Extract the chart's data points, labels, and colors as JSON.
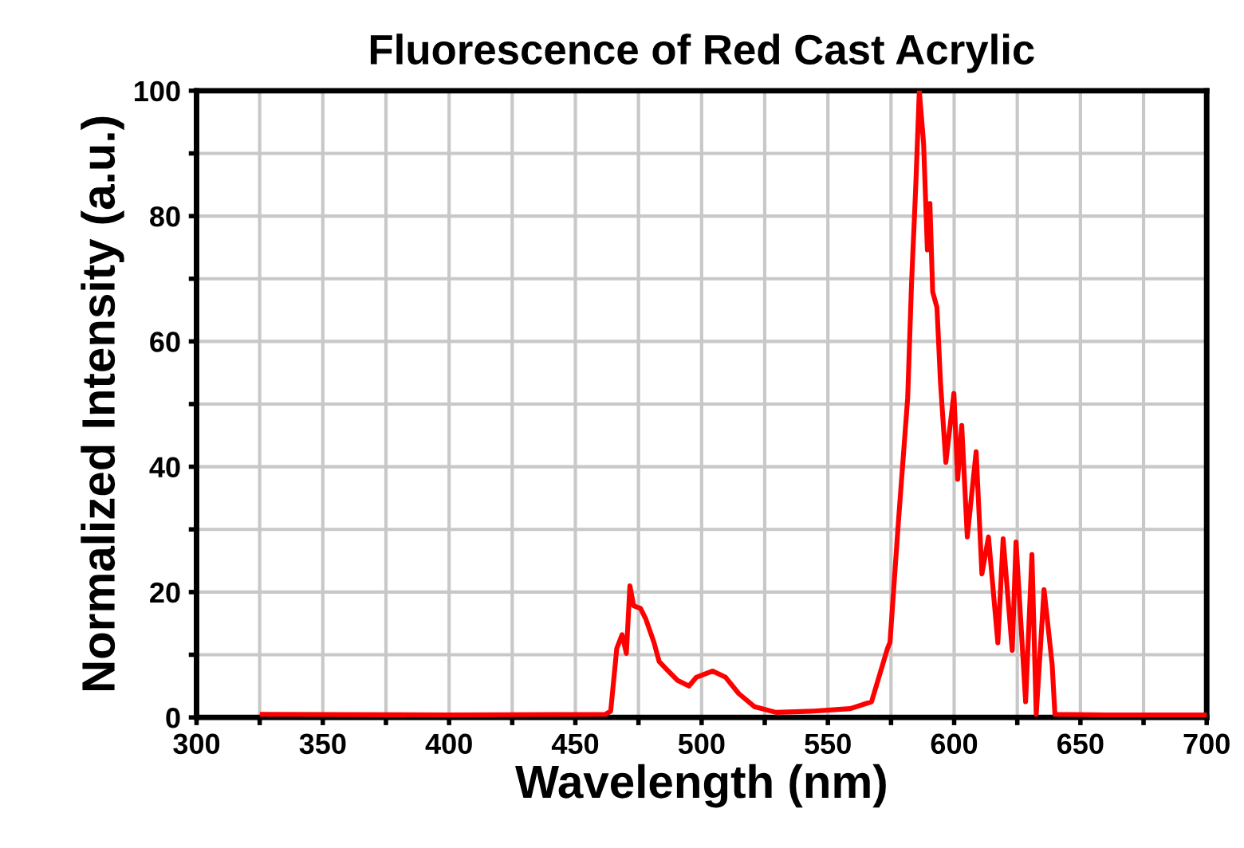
{
  "chart_data": {
    "type": "line",
    "title": "Fluorescence of Red Cast Acrylic",
    "xlabel": "Wavelength (nm)",
    "ylabel": "Normalized Intensity (a.u.)",
    "xlim": [
      300,
      700
    ],
    "ylim": [
      0,
      100
    ],
    "xticks": [
      300,
      {
        "value": 325,
        "label": null
      },
      350,
      {
        "value": 375,
        "label": null
      },
      400,
      {
        "value": 425,
        "label": null
      },
      450,
      {
        "value": 475,
        "label": null
      },
      500,
      {
        "value": 525,
        "label": null
      },
      550,
      {
        "value": 575,
        "label": null
      },
      600,
      {
        "value": 625,
        "label": null
      },
      650,
      {
        "value": 675,
        "label": null
      },
      700
    ],
    "yticks": [
      0,
      {
        "value": 10,
        "label": null
      },
      20,
      {
        "value": 30,
        "label": null
      },
      40,
      {
        "value": 50,
        "label": null
      },
      60,
      {
        "value": 70,
        "label": null
      },
      80,
      {
        "value": 90,
        "label": null
      },
      100
    ],
    "grid": true,
    "marker": "none",
    "line_style": "solid",
    "series": [
      {
        "color": "#ff0000",
        "x": [
          326,
          400,
          462,
          464,
          466.4,
          468.5,
          470.2,
          471.6,
          473.1,
          475.8,
          477.9,
          481.1,
          483.2,
          486.3,
          490.5,
          495,
          497.9,
          504.4,
          509.5,
          514.7,
          521,
          529.5,
          544.2,
          558.9,
          567.3,
          573.6,
          574.6,
          577.8,
          581.6,
          583.1,
          584.8,
          586.2,
          587.9,
          589.4,
          590.4,
          591.5,
          593.2,
          594.6,
          596.7,
          599.9,
          601.4,
          603.0,
          605.2,
          608.7,
          611.0,
          613.6,
          617.3,
          619.4,
          623.0,
          624.5,
          628.3,
          630.8,
          632.5,
          635.6,
          638.8,
          639.9,
          660,
          700
        ],
        "values": [
          0.5,
          0.4,
          0.5,
          1,
          11,
          13.2,
          10.2,
          21,
          17.8,
          17.4,
          15.7,
          12,
          8.9,
          7.6,
          5.9,
          5,
          6.4,
          7.4,
          6.4,
          3.8,
          1.7,
          0.8,
          1.0,
          1.4,
          2.5,
          11,
          12,
          30.5,
          51,
          69,
          84.8,
          100,
          91.6,
          74.6,
          82,
          67.9,
          65.4,
          53.4,
          40.7,
          51.7,
          38,
          46.6,
          28.8,
          42.4,
          22.9,
          28.8,
          11.9,
          28.5,
          10.7,
          28,
          2.5,
          26,
          0.5,
          20.4,
          8.5,
          0.5,
          0.4,
          0.4
        ]
      }
    ]
  }
}
